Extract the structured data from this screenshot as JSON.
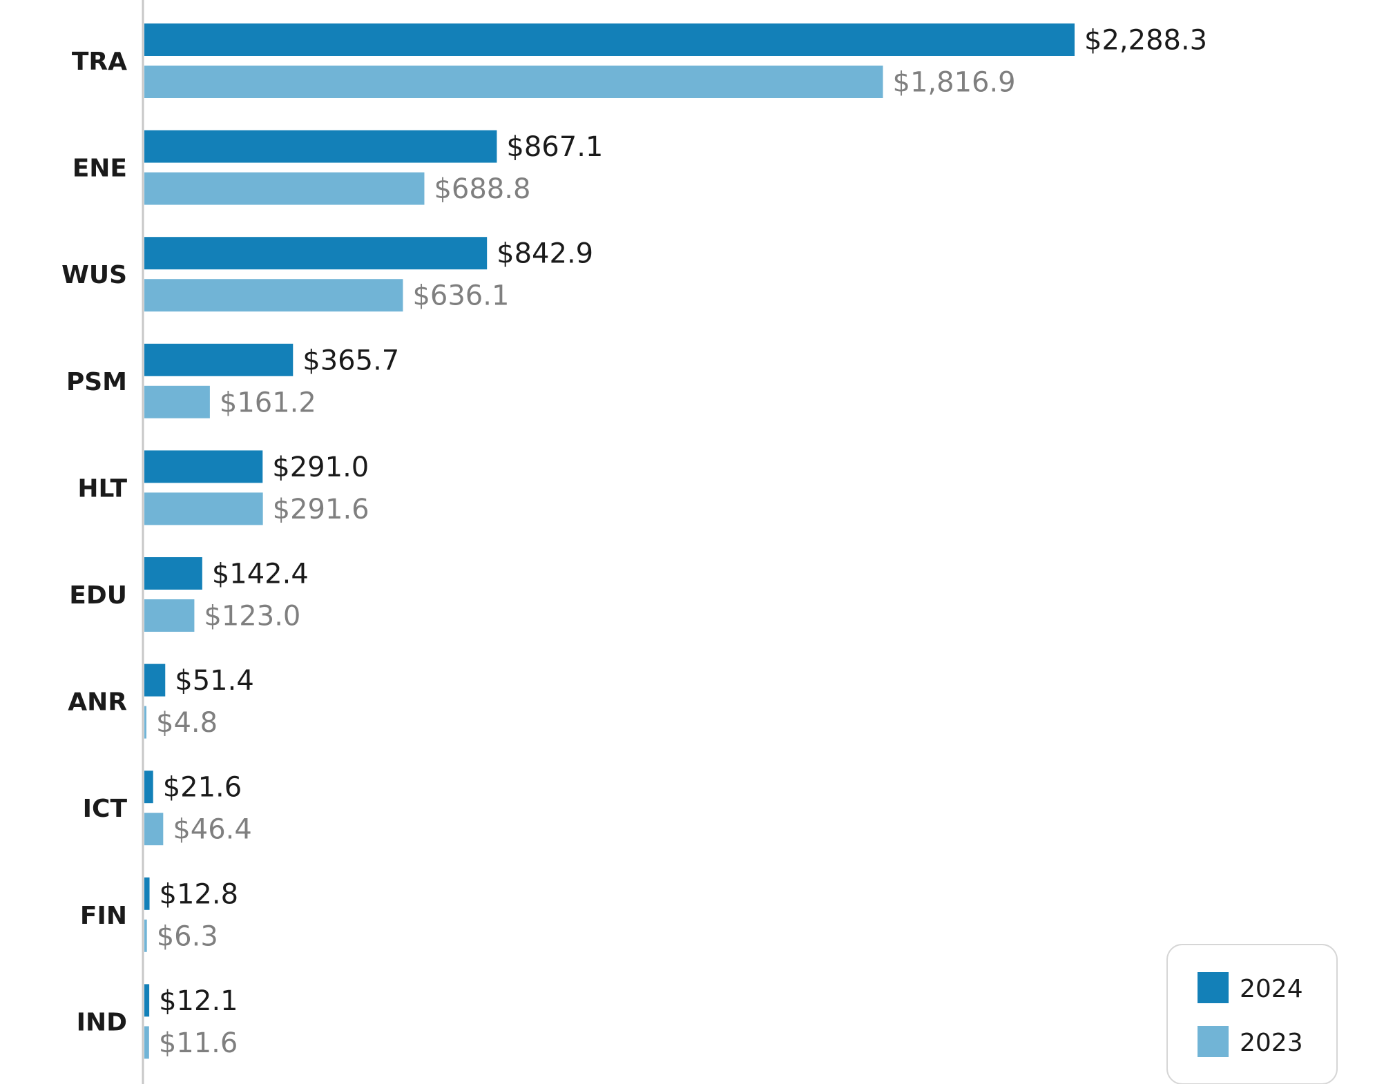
{
  "chart_data": {
    "type": "bar",
    "orientation": "horizontal",
    "categories": [
      "TRA",
      "ENE",
      "WUS",
      "PSM",
      "HLT",
      "EDU",
      "ANR",
      "ICT",
      "FIN",
      "IND"
    ],
    "series": [
      {
        "name": "2024",
        "color": "#1380b8",
        "label_color": "#1a1a1a",
        "values": [
          2288.3,
          867.1,
          842.9,
          365.7,
          291.0,
          142.4,
          51.4,
          21.6,
          12.8,
          12.1
        ],
        "labels": [
          "$2,288.3",
          "$867.1",
          "$842.9",
          "$365.7",
          "$291.0",
          "$142.4",
          "$51.4",
          "$21.6",
          "$12.8",
          "$12.1"
        ]
      },
      {
        "name": "2023",
        "color": "#71b4d6",
        "label_color": "#7f7f7f",
        "values": [
          1816.9,
          688.8,
          636.1,
          161.2,
          291.6,
          123.0,
          4.8,
          46.4,
          6.3,
          11.6
        ],
        "labels": [
          "$1,816.9",
          "$688.8",
          "$636.1",
          "$161.2",
          "$291.6",
          "$123.0",
          "$4.8",
          "$46.4",
          "$6.3",
          "$11.6"
        ]
      }
    ],
    "xlim": [
      0,
      2288.3
    ],
    "grid": false,
    "legend": {
      "position": "bottom-right",
      "items": [
        "2024",
        "2023"
      ]
    }
  }
}
